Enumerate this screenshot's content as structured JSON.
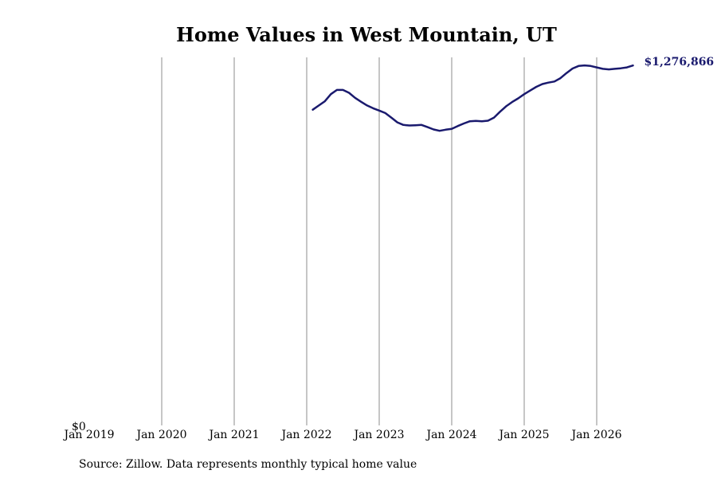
{
  "chart_data": {
    "type": "line",
    "title": "Home Values in West Mountain, UT",
    "source": "Source: Zillow. Data represents monthly typical home value",
    "xlabel": "",
    "ylabel": "",
    "grid": "vertical",
    "y_tick_label": "$0",
    "xlim": [
      "2019-01",
      "2026-07"
    ],
    "ylim": [
      0,
      1300000
    ],
    "x_ticks": [
      {
        "date": "2019-01",
        "label": "Jan 2019"
      },
      {
        "date": "2020-01",
        "label": "Jan 2020"
      },
      {
        "date": "2021-01",
        "label": "Jan 2021"
      },
      {
        "date": "2022-01",
        "label": "Jan 2022"
      },
      {
        "date": "2023-01",
        "label": "Jan 2023"
      },
      {
        "date": "2024-01",
        "label": "Jan 2024"
      },
      {
        "date": "2025-01",
        "label": "Jan 2025"
      },
      {
        "date": "2026-01",
        "label": "Jan 2026"
      }
    ],
    "end_label": "$1,276,866",
    "line_color": "#1a1a6e",
    "series": [
      {
        "x": [
          "2022-02",
          "2022-03",
          "2022-04",
          "2022-05",
          "2022-06",
          "2022-07",
          "2022-08",
          "2022-09",
          "2022-10",
          "2022-11",
          "2022-12",
          "2023-01",
          "2023-02",
          "2023-03",
          "2023-04",
          "2023-05",
          "2023-06",
          "2023-07",
          "2023-08",
          "2023-09",
          "2023-10",
          "2023-11",
          "2023-12",
          "2024-01",
          "2024-02",
          "2024-03",
          "2024-04",
          "2024-05",
          "2024-06",
          "2024-07",
          "2024-08",
          "2024-09",
          "2024-10",
          "2024-11",
          "2024-12",
          "2025-01",
          "2025-02",
          "2025-03",
          "2025-04",
          "2025-05",
          "2025-06",
          "2025-07",
          "2025-08",
          "2025-09",
          "2025-10",
          "2025-11",
          "2025-12",
          "2026-01",
          "2026-02",
          "2026-03",
          "2026-04",
          "2026-05",
          "2026-06",
          "2026-07"
        ],
        "values": [
          1120000,
          1135000,
          1150000,
          1175000,
          1190000,
          1190000,
          1180000,
          1162000,
          1148000,
          1135000,
          1125000,
          1117000,
          1108000,
          1092000,
          1075000,
          1066000,
          1064000,
          1065000,
          1066000,
          1058000,
          1050000,
          1045000,
          1049000,
          1052000,
          1062000,
          1071000,
          1079000,
          1080000,
          1079000,
          1081000,
          1092000,
          1113000,
          1132000,
          1147000,
          1160000,
          1175000,
          1188000,
          1201000,
          1211000,
          1216000,
          1220000,
          1232000,
          1250000,
          1266000,
          1275000,
          1277000,
          1275000,
          1270000,
          1265000,
          1263000,
          1265000,
          1267000,
          1270000,
          1276866
        ]
      }
    ]
  }
}
